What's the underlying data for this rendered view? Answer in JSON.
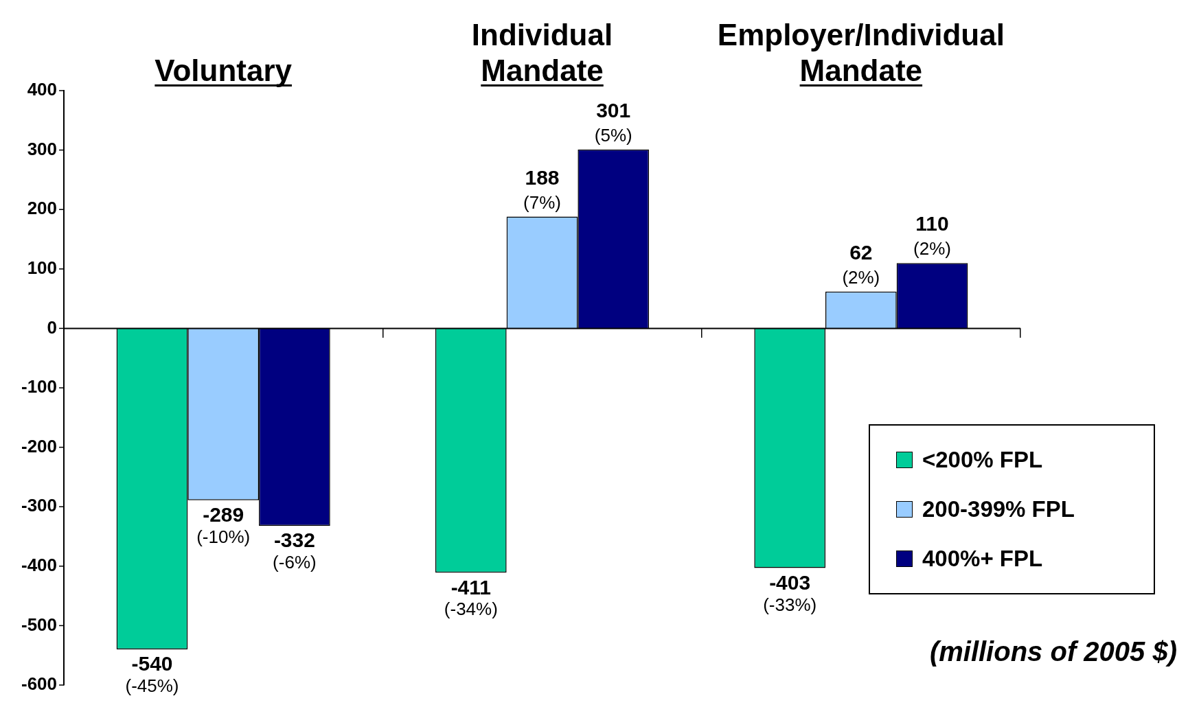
{
  "chart_data": {
    "type": "bar",
    "categories": [
      "Voluntary",
      "Individual Mandate",
      "Employer/Individual Mandate"
    ],
    "series": [
      {
        "name": "<200% FPL",
        "color": "#00cc99",
        "values": [
          -540,
          -411,
          -403
        ],
        "value_labels": [
          "-540\n(-45%)",
          "-411\n(-34%)",
          "-403\n(-33%)"
        ]
      },
      {
        "name": "200-399% FPL",
        "color": "#99ccff",
        "values": [
          -289,
          188,
          62
        ],
        "value_labels": [
          "-289\n(-10%)",
          "188\n(7%)",
          "62\n(2%)"
        ]
      },
      {
        "name": "400%+ FPL",
        "color": "#000080",
        "values": [
          -332,
          301,
          110
        ],
        "value_labels": [
          "-332\n(-6%)",
          "301\n(5%)",
          "110\n(2%)"
        ]
      }
    ],
    "ylim": [
      -600,
      400
    ],
    "yticks": [
      -600,
      -500,
      -400,
      -300,
      -200,
      -100,
      0,
      100,
      200,
      300,
      400
    ],
    "grid": false,
    "legend": "bottom right",
    "ref_lines": [
      {
        "axis": "y",
        "value": 0,
        "color": "#000000"
      }
    ],
    "annotations": [
      "(millions of 2005 $)"
    ]
  }
}
